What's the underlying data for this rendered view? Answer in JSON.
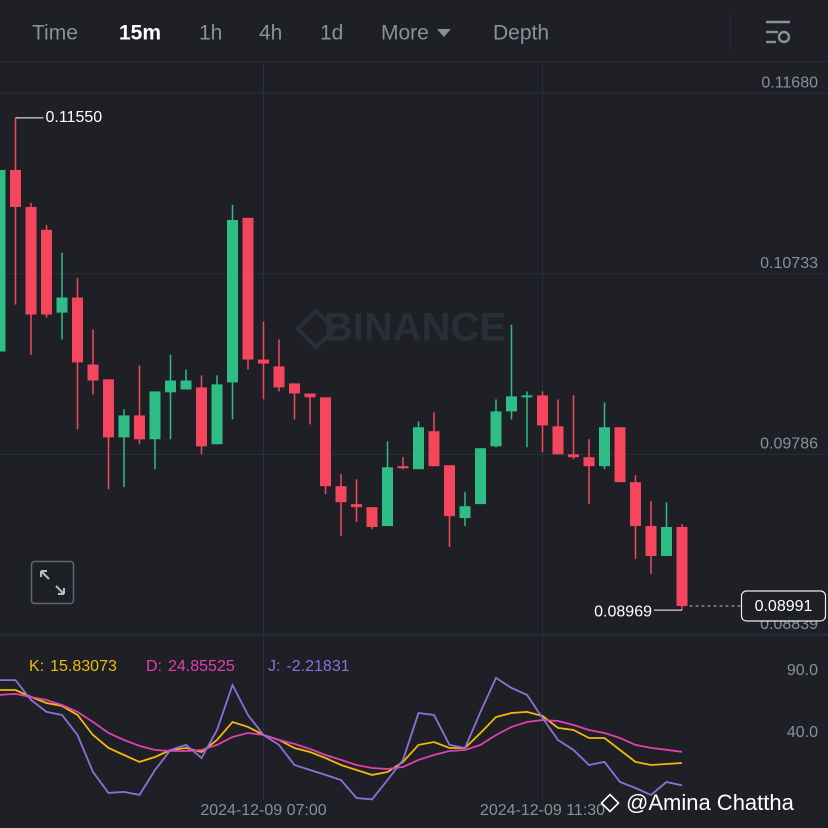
{
  "toolbar": {
    "tabs": [
      "Time",
      "15m",
      "1h",
      "4h",
      "1d",
      "More",
      "Depth"
    ],
    "active_index": 1
  },
  "watermark": "BINANCE",
  "credit": "@Amina Chattha",
  "chart_data": [
    {
      "type": "candlestick",
      "categories": [
        null,
        null,
        null,
        null,
        null,
        null,
        null,
        null,
        null,
        null,
        null,
        null,
        null,
        null,
        null,
        null,
        null,
        "2024-12-09 07:00",
        null,
        null,
        null,
        null,
        null,
        null,
        null,
        null,
        null,
        null,
        null,
        null,
        null,
        null,
        null,
        null,
        null,
        "2024-12-09 11:30",
        null,
        null,
        null,
        null,
        null,
        null,
        null,
        null,
        null
      ],
      "open": [
        0.10325,
        0.11277,
        0.11083,
        0.10963,
        0.10529,
        0.10608,
        0.10257,
        0.10179,
        0.09875,
        0.0999,
        0.09865,
        0.10111,
        0.10126,
        0.10137,
        0.09839,
        0.10163,
        0.11026,
        0.10283,
        0.10247,
        0.10158,
        0.10105,
        0.10085,
        0.09619,
        0.09525,
        0.09509,
        0.0941,
        0.09724,
        0.09708,
        0.09907,
        0.09729,
        0.09452,
        0.09525,
        0.09828,
        0.10011,
        0.10085,
        0.10095,
        0.09933,
        0.09786,
        0.09771,
        0.09724,
        0.09928,
        0.0964,
        0.0941,
        0.09253,
        0.09405
      ],
      "high": [
        0.11277,
        0.1155,
        0.11104,
        0.10989,
        0.10843,
        0.10712,
        0.1044,
        0.10179,
        0.10022,
        0.10252,
        0.10116,
        0.10309,
        0.10231,
        0.102,
        0.102,
        0.11094,
        0.11026,
        0.10482,
        0.10388,
        0.10158,
        0.10105,
        0.10085,
        0.09682,
        0.09656,
        0.09509,
        0.09854,
        0.09771,
        0.09959,
        0.10006,
        0.09729,
        0.09588,
        0.09818,
        0.10074,
        0.10466,
        0.10116,
        0.10116,
        0.10074,
        0.10095,
        0.09865,
        0.10058,
        0.09928,
        0.09677,
        0.09541,
        0.09535,
        0.0942
      ],
      "low": [
        0.10325,
        0.10571,
        0.10309,
        0.10503,
        0.10388,
        0.09917,
        0.101,
        0.09603,
        0.09614,
        0.09839,
        0.09708,
        0.09865,
        0.10126,
        0.09786,
        0.09839,
        0.09969,
        0.10231,
        0.10074,
        0.10116,
        0.09969,
        0.09943,
        0.09577,
        0.09358,
        0.09431,
        0.09394,
        0.0941,
        0.09708,
        0.09708,
        0.09724,
        0.093,
        0.0941,
        0.09525,
        0.09823,
        0.09969,
        0.09823,
        0.09797,
        0.09786,
        0.0976,
        0.09525,
        0.09708,
        0.0964,
        0.09237,
        0.09159,
        0.09253,
        0.08969
      ],
      "close": [
        0.11277,
        0.11083,
        0.10519,
        0.10519,
        0.10608,
        0.10268,
        0.10173,
        0.09875,
        0.0999,
        0.09865,
        0.10116,
        0.10173,
        0.10173,
        0.09828,
        0.10153,
        0.11015,
        0.10283,
        0.10262,
        0.10137,
        0.10105,
        0.10085,
        0.09619,
        0.09535,
        0.09509,
        0.09405,
        0.09718,
        0.09713,
        0.09928,
        0.09724,
        0.09462,
        0.09514,
        0.09818,
        0.10011,
        0.1009,
        0.10095,
        0.09938,
        0.09786,
        0.09771,
        0.09724,
        0.09928,
        0.0964,
        0.0941,
        0.09253,
        0.09405,
        0.08991
      ],
      "up_color": "#2ebd85",
      "down_color": "#f6465d",
      "high_label": "0.11550",
      "low_label": "0.08969",
      "last_label": "0.08991",
      "ylim": [
        0.08844,
        0.11843
      ],
      "yticks": [
        {
          "value": 0.1168,
          "label": "0.11680"
        },
        0.10733,
        0.09786,
        0.08839
      ],
      "grid": true
    },
    {
      "type": "line",
      "series": [
        {
          "name": "K:",
          "color": "#f0b90b",
          "values": [
            74.7,
            74.7,
            69.0,
            64.2,
            61.8,
            54.5,
            38.4,
            27.9,
            22.3,
            16.7,
            20.7,
            26.3,
            27.9,
            24.7,
            34.4,
            48.9,
            44.9,
            38.4,
            34.4,
            27.9,
            24.7,
            19.9,
            14.2,
            10.2,
            6.2,
            8.6,
            16.7,
            30.4,
            32.8,
            27.9,
            27.9,
            40.0,
            52.9,
            56.1,
            57.0,
            53.7,
            44.1,
            42.4,
            36.0,
            36.0,
            26.3,
            16.7,
            14.2,
            15.0,
            15.83073
          ]
        },
        {
          "name": "D:",
          "color": "#e040b0",
          "values": [
            70.7,
            71.5,
            69.0,
            66.6,
            62.6,
            57.0,
            48.9,
            40.0,
            34.4,
            29.6,
            26.3,
            25.5,
            25.5,
            26.3,
            30.4,
            36.8,
            40.0,
            38.4,
            34.4,
            31.2,
            27.1,
            22.3,
            18.3,
            14.2,
            11.8,
            11.0,
            12.6,
            18.3,
            22.3,
            25.5,
            26.3,
            30.4,
            38.4,
            44.9,
            48.9,
            50.5,
            49.7,
            46.5,
            42.4,
            40.0,
            36.0,
            30.4,
            28.0,
            26.5,
            24.85525
          ]
        },
        {
          "name": "J:",
          "color": "#8f6fd8",
          "values": [
            82.7,
            82.7,
            66.6,
            57.0,
            54.5,
            38.4,
            8.6,
            -8.3,
            -7.5,
            -9.9,
            10.2,
            26.3,
            30.4,
            19.9,
            42.4,
            78.7,
            54.5,
            38.4,
            30.4,
            14.2,
            10.2,
            6.2,
            2.1,
            -12.4,
            -13.5,
            2.1,
            18.3,
            56.1,
            54.5,
            30.4,
            27.9,
            57.0,
            84.4,
            76.3,
            70.7,
            52.1,
            34.4,
            26.3,
            14.2,
            16.7,
            0.5,
            -4.3,
            -9.9,
            0.5,
            -2.21831
          ]
        }
      ],
      "ylim": [
        -14,
        102.9
      ],
      "yticks": [
        {
          "value": 90,
          "label": "90.0"
        },
        {
          "value": 40,
          "label": "40.0"
        }
      ],
      "grid": false
    }
  ]
}
